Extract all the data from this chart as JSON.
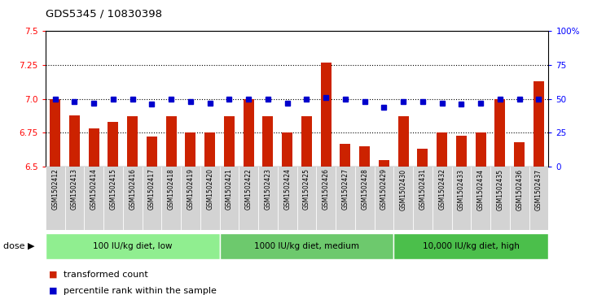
{
  "title": "GDS5345 / 10830398",
  "samples": [
    "GSM1502412",
    "GSM1502413",
    "GSM1502414",
    "GSM1502415",
    "GSM1502416",
    "GSM1502417",
    "GSM1502418",
    "GSM1502419",
    "GSM1502420",
    "GSM1502421",
    "GSM1502422",
    "GSM1502423",
    "GSM1502424",
    "GSM1502425",
    "GSM1502426",
    "GSM1502427",
    "GSM1502428",
    "GSM1502429",
    "GSM1502430",
    "GSM1502431",
    "GSM1502432",
    "GSM1502433",
    "GSM1502434",
    "GSM1502435",
    "GSM1502436",
    "GSM1502437"
  ],
  "bar_values": [
    7.0,
    6.88,
    6.78,
    6.83,
    6.87,
    6.72,
    6.87,
    6.75,
    6.75,
    6.87,
    7.0,
    6.87,
    6.75,
    6.87,
    7.27,
    6.67,
    6.65,
    6.55,
    6.87,
    6.63,
    6.75,
    6.73,
    6.75,
    7.0,
    6.68,
    7.13
  ],
  "percentile_values": [
    50,
    48,
    47,
    50,
    50,
    46,
    50,
    48,
    47,
    50,
    50,
    50,
    47,
    50,
    51,
    50,
    48,
    44,
    48,
    48,
    47,
    46,
    47,
    50,
    50,
    50
  ],
  "ylim_left": [
    6.5,
    7.5
  ],
  "ylim_right": [
    0,
    100
  ],
  "yticks_left": [
    6.5,
    6.75,
    7.0,
    7.25,
    7.5
  ],
  "yticks_right": [
    0,
    25,
    50,
    75,
    100
  ],
  "bar_color": "#CC2200",
  "dot_color": "#0000CC",
  "grid_values": [
    6.75,
    7.0,
    7.25
  ],
  "plot_bg_color": "#FFFFFF",
  "fig_bg_color": "#FFFFFF",
  "tick_area_color": "#D3D3D3",
  "group_boundaries": [
    {
      "start": 0,
      "end": 9,
      "label": "100 IU/kg diet, low",
      "color": "#90EE90"
    },
    {
      "start": 9,
      "end": 18,
      "label": "1000 IU/kg diet, medium",
      "color": "#6DC96D"
    },
    {
      "start": 18,
      "end": 26,
      "label": "10,000 IU/kg diet, high",
      "color": "#4BBF4B"
    }
  ],
  "legend_items": [
    {
      "label": "transformed count",
      "color": "#CC2200"
    },
    {
      "label": "percentile rank within the sample",
      "color": "#0000CC"
    }
  ],
  "dose_label": "dose",
  "dose_arrow": "▶"
}
